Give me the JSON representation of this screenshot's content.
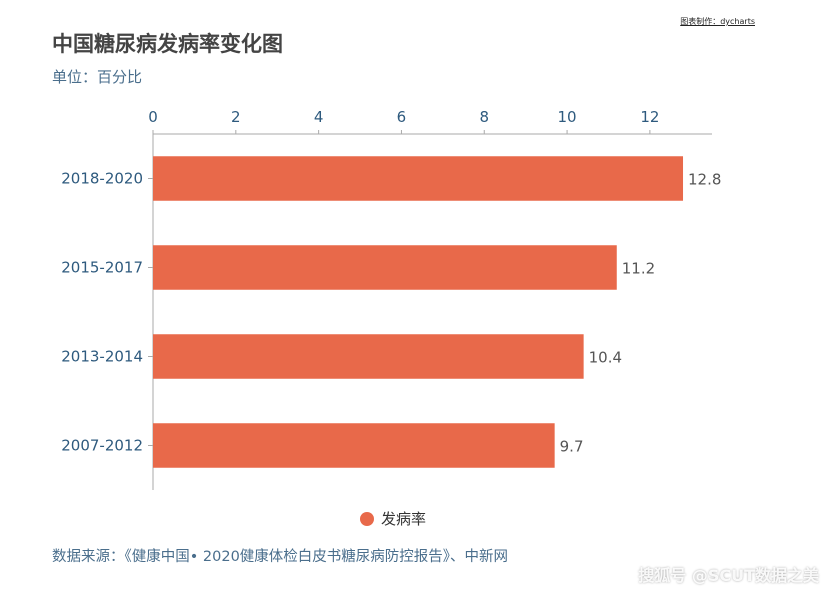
{
  "credit": "图表制作：dycharts",
  "title": "中国糖尿病发病率变化图",
  "subtitle": "单位：百分比",
  "source": "数据来源：《健康中国• 2020健康体检白皮书糖尿病防控报告》、中新网",
  "watermark": "搜狐号 @SCUT数据之美",
  "colors": {
    "bar": "#e8694a",
    "axis_text": "#2e5a7e",
    "axis_line": "#aaaaaa"
  },
  "chart_data": {
    "type": "bar",
    "orientation": "horizontal",
    "categories": [
      "2018-2020",
      "2015-2017",
      "2013-2014",
      "2007-2012"
    ],
    "series": [
      {
        "name": "发病率",
        "values": [
          12.8,
          11.2,
          10.4,
          9.7
        ]
      }
    ],
    "xlim": [
      0,
      13.5
    ],
    "xticks": [
      0,
      2,
      4,
      6,
      8,
      10,
      12
    ],
    "axis_position": "top",
    "grid": false,
    "legend_position": "bottom"
  }
}
